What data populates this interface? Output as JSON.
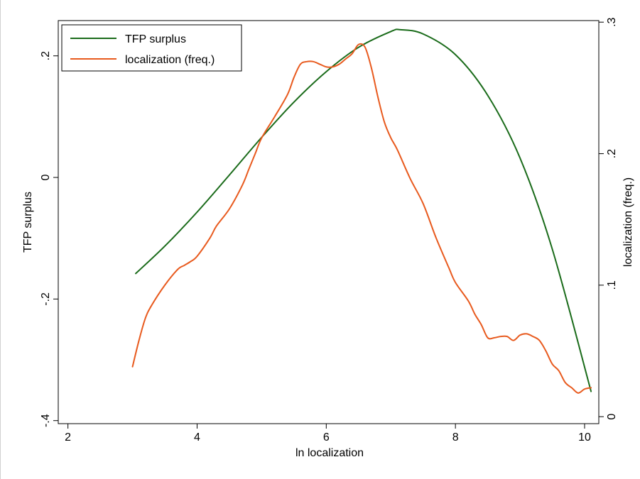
{
  "chart_data": {
    "type": "line",
    "xlabel": "ln localization",
    "ylabel_left": "TFP surplus",
    "ylabel_right": "localization (freq.)",
    "xlim": [
      1.85,
      10.22
    ],
    "ylim_left": [
      -0.405,
      0.258
    ],
    "ylim_right": [
      -0.0053,
      0.3012
    ],
    "x_ticks": [
      2,
      4,
      6,
      8,
      10
    ],
    "x_tick_labels": [
      "2",
      "4",
      "6",
      "8",
      "10"
    ],
    "y_left_ticks": [
      -0.4,
      -0.2,
      0,
      0.2
    ],
    "y_left_tick_labels": [
      "-.4",
      "-.2",
      "0",
      ".2"
    ],
    "y_right_ticks": [
      0,
      0.1,
      0.2,
      0.3
    ],
    "y_right_tick_labels": [
      "0",
      ".1",
      ".2",
      ".3"
    ],
    "grid": false,
    "legend_position": "top-left",
    "series": [
      {
        "name": "TFP surplus",
        "axis": "left",
        "color": "#1a6b1a",
        "x": [
          3.05,
          3.5,
          4.0,
          4.5,
          5.0,
          5.5,
          6.0,
          6.5,
          7.0,
          7.15,
          7.5,
          8.0,
          8.5,
          9.0,
          9.5,
          10.1
        ],
        "y": [
          -0.158,
          -0.113,
          -0.057,
          0.004,
          0.066,
          0.124,
          0.174,
          0.214,
          0.24,
          0.243,
          0.236,
          0.202,
          0.135,
          0.032,
          -0.118,
          -0.352
        ]
      },
      {
        "name": "localization (freq.)",
        "axis": "right",
        "color": "#e85a1e",
        "x": [
          3.0,
          3.1,
          3.2,
          3.3,
          3.5,
          3.7,
          3.8,
          3.9,
          4.0,
          4.2,
          4.3,
          4.5,
          4.7,
          4.8,
          4.9,
          5.0,
          5.2,
          5.4,
          5.5,
          5.6,
          5.7,
          5.8,
          5.9,
          6.0,
          6.1,
          6.2,
          6.3,
          6.4,
          6.5,
          6.6,
          6.7,
          6.8,
          6.9,
          7.0,
          7.1,
          7.3,
          7.5,
          7.7,
          7.9,
          8.0,
          8.2,
          8.3,
          8.4,
          8.5,
          8.6,
          8.7,
          8.8,
          8.9,
          9.0,
          9.1,
          9.2,
          9.3,
          9.4,
          9.5,
          9.6,
          9.7,
          9.8,
          9.9,
          10.0,
          10.1
        ],
        "y": [
          0.038,
          0.058,
          0.075,
          0.085,
          0.1,
          0.112,
          0.115,
          0.118,
          0.122,
          0.136,
          0.145,
          0.158,
          0.176,
          0.188,
          0.2,
          0.212,
          0.228,
          0.245,
          0.258,
          0.268,
          0.27,
          0.27,
          0.268,
          0.266,
          0.266,
          0.268,
          0.272,
          0.276,
          0.283,
          0.281,
          0.265,
          0.243,
          0.224,
          0.212,
          0.203,
          0.181,
          0.162,
          0.136,
          0.113,
          0.102,
          0.088,
          0.078,
          0.07,
          0.06,
          0.06,
          0.061,
          0.061,
          0.058,
          0.062,
          0.063,
          0.061,
          0.058,
          0.05,
          0.04,
          0.035,
          0.026,
          0.022,
          0.018,
          0.021,
          0.022
        ]
      }
    ]
  }
}
